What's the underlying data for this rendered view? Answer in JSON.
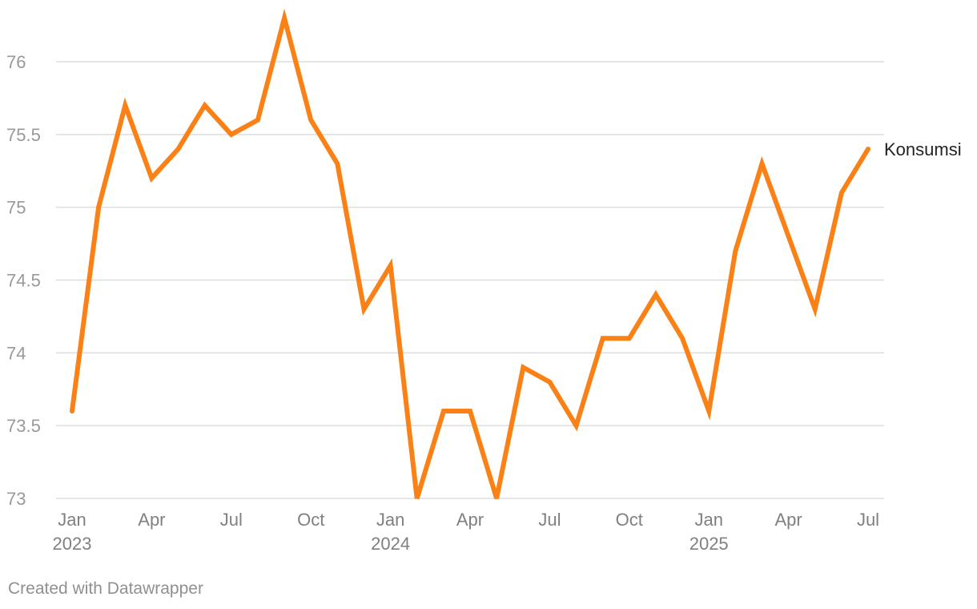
{
  "chart_data": {
    "type": "line",
    "title": "",
    "xlabel": "",
    "ylabel": "",
    "x": [
      "2023-01",
      "2023-02",
      "2023-03",
      "2023-04",
      "2023-05",
      "2023-06",
      "2023-07",
      "2023-08",
      "2023-09",
      "2023-10",
      "2023-11",
      "2023-12",
      "2024-01",
      "2024-02",
      "2024-03",
      "2024-04",
      "2024-05",
      "2024-06",
      "2024-07",
      "2024-08",
      "2024-09",
      "2024-10",
      "2024-11",
      "2024-12",
      "2025-01",
      "2025-02",
      "2025-03",
      "2025-04",
      "2025-05",
      "2025-06",
      "2025-07"
    ],
    "series": [
      {
        "name": "Konsumsi",
        "color": "#fb8116",
        "values": [
          73.6,
          75.0,
          75.7,
          75.2,
          75.4,
          75.7,
          75.5,
          75.6,
          76.3,
          75.6,
          75.3,
          74.3,
          74.6,
          73.0,
          73.6,
          73.6,
          73.0,
          73.9,
          73.8,
          73.5,
          74.1,
          74.1,
          74.4,
          74.1,
          73.6,
          74.7,
          75.3,
          74.8,
          74.3,
          75.1,
          75.4
        ]
      }
    ],
    "ylim": [
      73,
      76.3
    ],
    "y_ticks": [
      {
        "value": 73,
        "label": "73"
      },
      {
        "value": 73.5,
        "label": "73.5"
      },
      {
        "value": 74,
        "label": "74"
      },
      {
        "value": 74.5,
        "label": "74.5"
      },
      {
        "value": 75,
        "label": "75"
      },
      {
        "value": 75.5,
        "label": "75.5"
      },
      {
        "value": 76,
        "label": "76"
      }
    ],
    "x_ticks": [
      {
        "x": "2023-01",
        "label": "Jan",
        "sub": "2023"
      },
      {
        "x": "2023-04",
        "label": "Apr",
        "sub": ""
      },
      {
        "x": "2023-07",
        "label": "Jul",
        "sub": ""
      },
      {
        "x": "2023-10",
        "label": "Oct",
        "sub": ""
      },
      {
        "x": "2024-01",
        "label": "Jan",
        "sub": "2024"
      },
      {
        "x": "2024-04",
        "label": "Apr",
        "sub": ""
      },
      {
        "x": "2024-07",
        "label": "Jul",
        "sub": ""
      },
      {
        "x": "2024-10",
        "label": "Oct",
        "sub": ""
      },
      {
        "x": "2025-01",
        "label": "Jan",
        "sub": "2025"
      },
      {
        "x": "2025-04",
        "label": "Apr",
        "sub": ""
      },
      {
        "x": "2025-07",
        "label": "Jul",
        "sub": ""
      }
    ],
    "grid": true,
    "legend": "direct label at line end"
  },
  "footer": {
    "credit": "Created with Datawrapper"
  }
}
